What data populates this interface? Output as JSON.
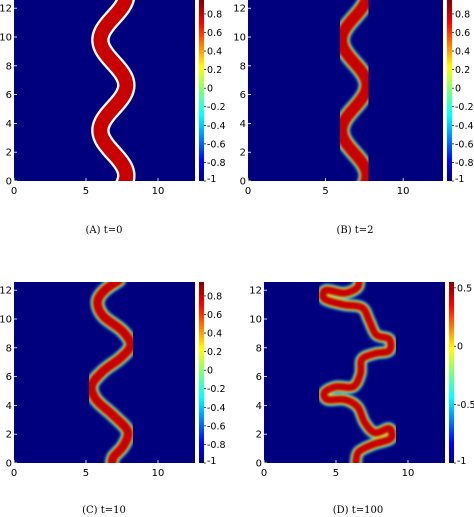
{
  "chart_data": [
    {
      "type": "heatmap",
      "caption": "(A) t=0",
      "title": "",
      "xlabel": "",
      "ylabel": "",
      "xlim": [
        0,
        12.57
      ],
      "ylim": [
        0,
        12.57
      ],
      "xticks": [
        0,
        5,
        10
      ],
      "yticks": [
        0,
        2,
        4,
        6,
        8,
        10,
        12
      ],
      "colorbar": {
        "range": [
          -1,
          0.95
        ],
        "ticks": [
          0.8,
          0.6,
          0.4,
          0.2,
          0,
          -0.2,
          -0.4,
          -0.6,
          -0.8,
          -1
        ]
      },
      "interface": {
        "kind": "sine",
        "center_x": 6.9,
        "amplitude": 0.9,
        "period": 6.28,
        "phase": 1.2,
        "half_width": 0.52,
        "white_edge": true
      }
    },
    {
      "type": "heatmap",
      "caption": "(B) t=2",
      "title": "",
      "xlabel": "",
      "ylabel": "",
      "xlim": [
        0,
        12.57
      ],
      "ylim": [
        0,
        12.57
      ],
      "xticks": [
        0,
        5,
        10
      ],
      "yticks": [
        0,
        2,
        4,
        6,
        8,
        10,
        12
      ],
      "colorbar": {
        "range": [
          -1,
          0.95
        ],
        "ticks": [
          0.8,
          0.6,
          0.4,
          0.2,
          0,
          -0.2,
          -0.4,
          -0.6,
          -0.8,
          -1
        ]
      },
      "interface": {
        "kind": "sine",
        "center_x": 6.85,
        "amplitude": 0.82,
        "period": 6.28,
        "phase": 1.2,
        "half_width": 0.42,
        "white_edge": false
      }
    },
    {
      "type": "heatmap",
      "caption": "(C) t=10",
      "title": "",
      "xlabel": "",
      "ylabel": "",
      "xlim": [
        0,
        12.57
      ],
      "ylim": [
        0,
        12.57
      ],
      "xticks": [
        0,
        5,
        10
      ],
      "yticks": [
        0,
        2,
        4,
        6,
        8,
        10,
        12
      ],
      "colorbar": {
        "range": [
          -1,
          0.95
        ],
        "ticks": [
          0.8,
          0.6,
          0.4,
          0.2,
          0,
          -0.2,
          -0.4,
          -0.6,
          -0.8,
          -1
        ]
      },
      "interface": {
        "kind": "path",
        "half_width": 0.36,
        "points": [
          [
            7.3,
            12.7
          ],
          [
            6.3,
            12.0
          ],
          [
            5.8,
            11.2
          ],
          [
            6.2,
            10.2
          ],
          [
            7.5,
            9.2
          ],
          [
            8.1,
            8.2
          ],
          [
            7.4,
            7.3
          ],
          [
            6.2,
            6.4
          ],
          [
            5.4,
            5.4
          ],
          [
            5.7,
            4.4
          ],
          [
            6.9,
            3.3
          ],
          [
            7.9,
            2.2
          ],
          [
            7.6,
            1.2
          ],
          [
            6.9,
            0.4
          ],
          [
            6.8,
            -0.2
          ]
        ]
      }
    },
    {
      "type": "heatmap",
      "caption": "(D) t=100",
      "title": "",
      "xlabel": "",
      "ylabel": "",
      "xlim": [
        0,
        12.57
      ],
      "ylim": [
        0,
        12.57
      ],
      "xticks": [
        0,
        5,
        10
      ],
      "yticks": [
        0,
        2,
        4,
        6,
        8,
        10,
        12
      ],
      "colorbar": {
        "range": [
          -1,
          0.55
        ],
        "ticks": [
          0.5,
          0,
          -0.5,
          -1
        ]
      },
      "interface": {
        "kind": "path",
        "half_width": 0.3,
        "points": [
          [
            6.6,
            12.8
          ],
          [
            6.5,
            12.2
          ],
          [
            5.6,
            11.8
          ],
          [
            4.3,
            12.0
          ],
          [
            4.2,
            11.4
          ],
          [
            5.5,
            11.0
          ],
          [
            6.8,
            10.8
          ],
          [
            7.3,
            9.9
          ],
          [
            7.8,
            8.9
          ],
          [
            8.7,
            8.6
          ],
          [
            8.7,
            7.8
          ],
          [
            7.7,
            7.6
          ],
          [
            6.8,
            7.2
          ],
          [
            6.7,
            6.2
          ],
          [
            6.2,
            5.3
          ],
          [
            5.0,
            5.3
          ],
          [
            4.2,
            4.9
          ],
          [
            4.4,
            4.4
          ],
          [
            5.6,
            4.4
          ],
          [
            6.5,
            3.9
          ],
          [
            7.0,
            2.8
          ],
          [
            7.7,
            2.1
          ],
          [
            8.7,
            2.4
          ],
          [
            8.8,
            1.7
          ],
          [
            7.6,
            1.3
          ],
          [
            6.6,
            0.8
          ],
          [
            6.4,
            0.2
          ],
          [
            6.4,
            -0.2
          ]
        ]
      }
    }
  ]
}
